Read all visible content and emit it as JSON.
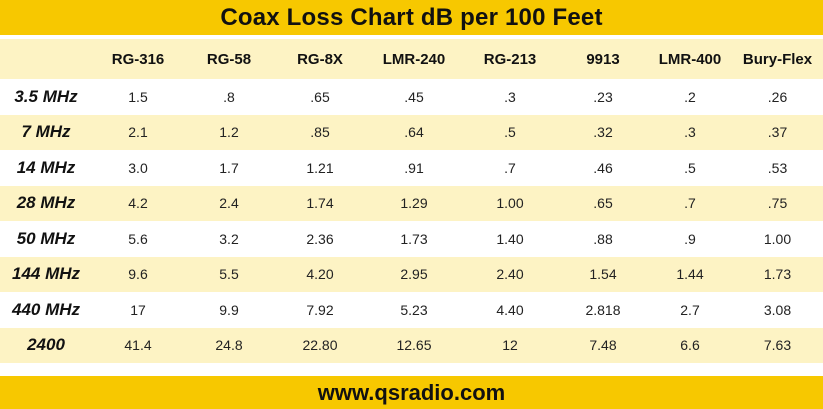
{
  "header": {
    "title": "Coax Loss Chart dB per 100 Feet"
  },
  "footer": {
    "url": "www.qsradio.com"
  },
  "colors": {
    "accent_yellow": "#f7c800",
    "row_tint": "#fdf3c4"
  },
  "chart_data": {
    "type": "table",
    "title": "Coax Loss Chart dB per 100 Feet",
    "columns": [
      "RG-316",
      "RG-58",
      "RG-8X",
      "LMR-240",
      "RG-213",
      "9913",
      "LMR-400",
      "Bury-Flex"
    ],
    "rows": [
      {
        "label": "3.5 MHz",
        "values": [
          "1.5",
          ".8",
          ".65",
          ".45",
          ".3",
          ".23",
          ".2",
          ".26"
        ]
      },
      {
        "label": "7 MHz",
        "values": [
          "2.1",
          "1.2",
          ".85",
          ".64",
          ".5",
          ".32",
          ".3",
          ".37"
        ]
      },
      {
        "label": "14 MHz",
        "values": [
          "3.0",
          "1.7",
          "1.21",
          ".91",
          ".7",
          ".46",
          ".5",
          ".53"
        ]
      },
      {
        "label": "28 MHz",
        "values": [
          "4.2",
          "2.4",
          "1.74",
          "1.29",
          "1.00",
          ".65",
          ".7",
          ".75"
        ]
      },
      {
        "label": "50 MHz",
        "values": [
          "5.6",
          "3.2",
          "2.36",
          "1.73",
          "1.40",
          ".88",
          ".9",
          "1.00"
        ]
      },
      {
        "label": "144 MHz",
        "values": [
          "9.6",
          "5.5",
          "4.20",
          "2.95",
          "2.40",
          "1.54",
          "1.44",
          "1.73"
        ]
      },
      {
        "label": "440 MHz",
        "values": [
          "17",
          "9.9",
          "7.92",
          "5.23",
          "4.40",
          "2.818",
          "2.7",
          "3.08"
        ]
      },
      {
        "label": "2400",
        "values": [
          "41.4",
          "24.8",
          "22.80",
          "12.65",
          "12",
          "7.48",
          "6.6",
          "7.63"
        ]
      }
    ]
  }
}
